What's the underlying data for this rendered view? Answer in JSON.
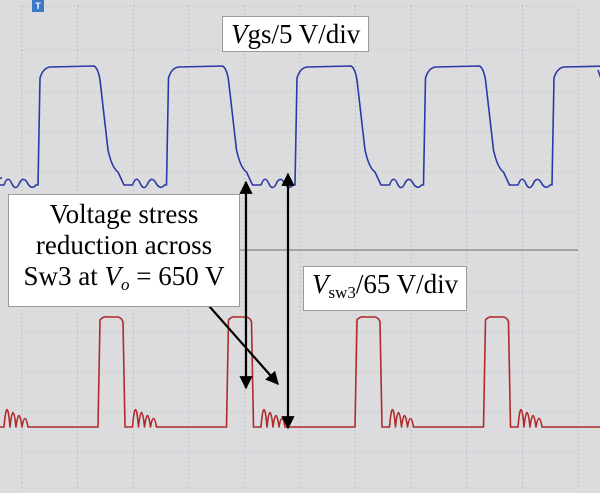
{
  "chart_data": {
    "type": "line",
    "title": "",
    "traces": [
      {
        "name": "Vgs",
        "label_prefix": "V",
        "label_sub": "gs",
        "label_suffix": "/5 V/div",
        "color": "#2b3aa6"
      },
      {
        "name": "Vsw3",
        "label_prefix": "V",
        "label_sub": "sw3",
        "label_suffix": "/65 V/div",
        "color": "#b02a2a"
      }
    ],
    "annotation": {
      "line1": "Voltage stress",
      "line2": "reduction across",
      "line3_prefix": "Sw3 at ",
      "line3_var": "V",
      "line3_sub": "o",
      "line3_suffix": " = 650 V"
    },
    "grid": true,
    "background": "#dcdcde",
    "grid_color": "#5a8a86"
  },
  "scope": {
    "trigger_marker": "T"
  }
}
